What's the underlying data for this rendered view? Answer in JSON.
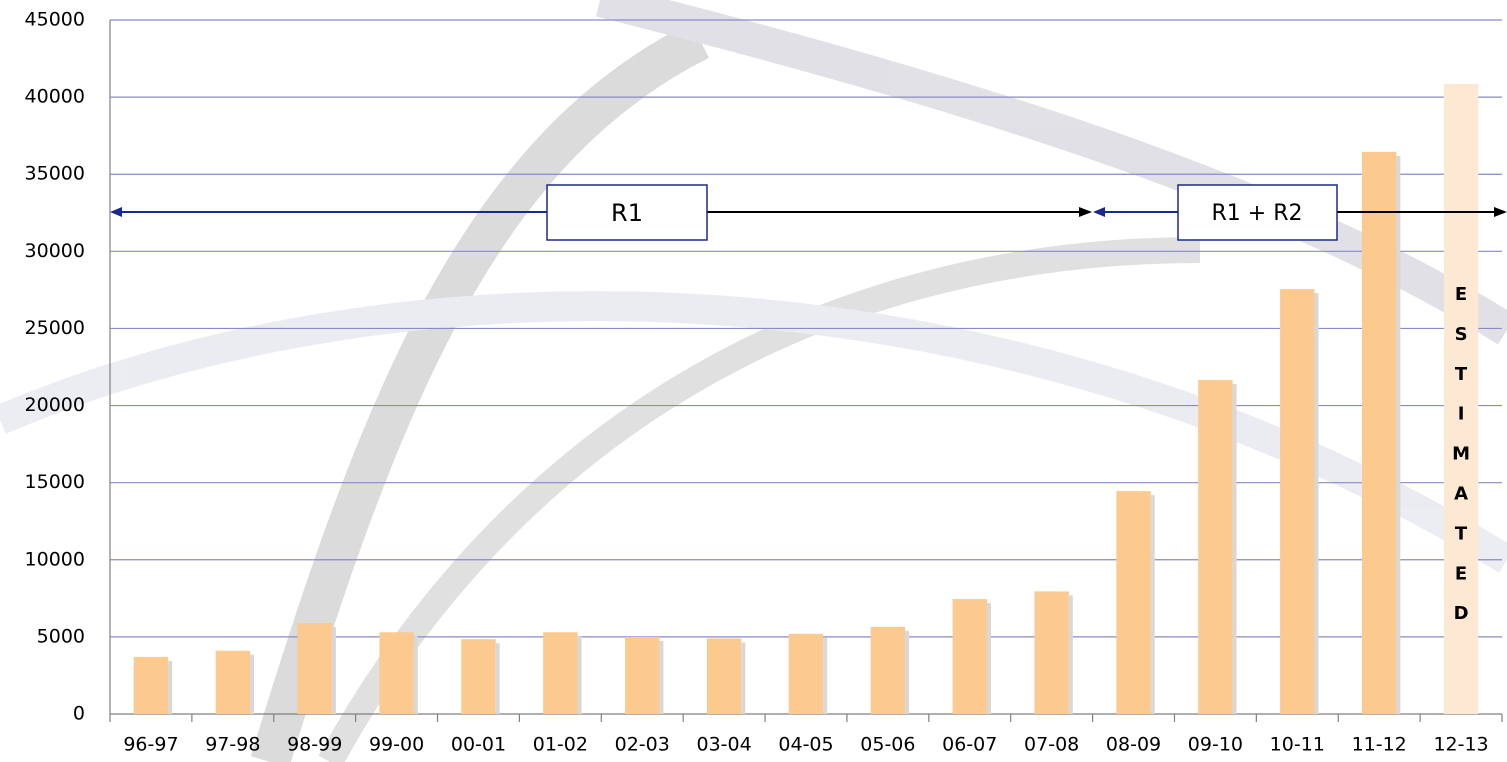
{
  "chart_data": {
    "type": "bar",
    "categories": [
      "96-97",
      "97-98",
      "98-99",
      "99-00",
      "00-01",
      "01-02",
      "02-03",
      "03-04",
      "04-05",
      "05-06",
      "06-07",
      "07-08",
      "08-09",
      "09-10",
      "10-11",
      "11-12",
      "12-13"
    ],
    "values": [
      3700,
      4100,
      5900,
      5300,
      4850,
      5300,
      5000,
      4900,
      5200,
      5650,
      7450,
      7950,
      14450,
      21650,
      27550,
      36450,
      40850
    ],
    "color": "#fcc98f",
    "estimated": {
      "category": "12-13",
      "label": "ESTIMATED",
      "color": "#fde8d4"
    },
    "annotations": [
      "R1",
      "R1 + R2"
    ],
    "ylim": [
      0,
      45000
    ],
    "yticks": [
      0,
      5000,
      10000,
      15000,
      20000,
      25000,
      30000,
      35000,
      40000,
      45000
    ],
    "grid": true
  }
}
